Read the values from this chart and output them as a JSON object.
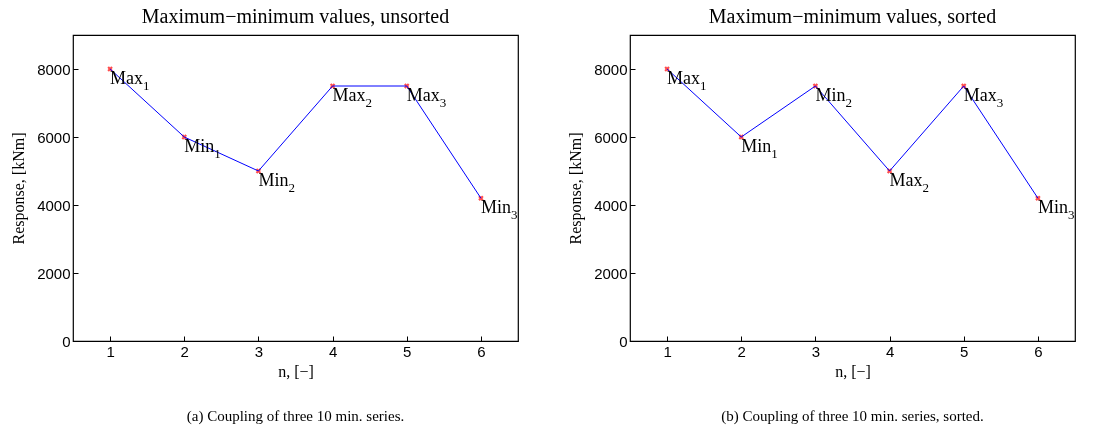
{
  "chart_data": [
    {
      "type": "line",
      "title": "Maximum−minimum values, unsorted",
      "xlabel": "n, [−]",
      "ylabel": "Response, [kNm]",
      "x": [
        1,
        2,
        3,
        4,
        5,
        6
      ],
      "series": [
        {
          "type": "scatter",
          "marker": "cross",
          "color": "#ff0000",
          "values": [
            8000,
            6000,
            5000,
            7500,
            7500,
            4200
          ]
        },
        {
          "marker": "none",
          "color": "#0000ff",
          "values": [
            8000,
            6000,
            5000,
            7500,
            7500,
            4200
          ]
        }
      ],
      "grid": false,
      "xlim": [
        0.5,
        6.5
      ],
      "xticks": [
        1,
        2,
        3,
        4,
        5,
        6
      ],
      "ylim": [
        0,
        9000
      ],
      "yticks": [
        0,
        2000,
        4000,
        6000,
        8000
      ],
      "annotations": [
        {
          "text": "Max$_{1}$",
          "x": 1,
          "y": 8000
        },
        {
          "text": "Min$_{1}$",
          "x": 2,
          "y": 6000
        },
        {
          "text": "Min$_{2}$",
          "x": 3,
          "y": 5000
        },
        {
          "text": "Max$_{2}$",
          "x": 4,
          "y": 7500
        },
        {
          "text": "Max$_{3}$",
          "x": 5,
          "y": 7500
        },
        {
          "text": "Min$_{3}$",
          "x": 6,
          "y": 4200
        },
        "(a)  Coupling of three 10 min. series."
      ]
    },
    {
      "type": "line",
      "title": "Maximum−minimum values, sorted",
      "xlabel": "n, [−]",
      "ylabel": "Response, [kNm]",
      "x": [
        1,
        2,
        3,
        4,
        5,
        6
      ],
      "series": [
        {
          "type": "scatter",
          "marker": "cross",
          "color": "#ff0000",
          "values": [
            8000,
            6000,
            7500,
            5000,
            7500,
            4200
          ]
        },
        {
          "marker": "none",
          "color": "#0000ff",
          "values": [
            8000,
            6000,
            7500,
            5000,
            7500,
            4200
          ]
        }
      ],
      "grid": false,
      "xlim": [
        0.5,
        6.5
      ],
      "xticks": [
        1,
        2,
        3,
        4,
        5,
        6
      ],
      "ylim": [
        0,
        9000
      ],
      "yticks": [
        0,
        2000,
        4000,
        6000,
        8000
      ],
      "annotations": [
        {
          "text": "Max$_{1}$",
          "x": 1,
          "y": 8000
        },
        {
          "text": "Min$_{1}$",
          "x": 2,
          "y": 6000
        },
        {
          "text": "Min$_{2}$",
          "x": 3,
          "y": 7500
        },
        {
          "text": "Max$_{2}$",
          "x": 4,
          "y": 5000
        },
        {
          "text": "Max$_{3}$",
          "x": 5,
          "y": 7500
        },
        {
          "text": "Min$_{3}$",
          "x": 6,
          "y": 4200
        },
        "(b)  Coupling of three 10 min. series, sorted."
      ]
    }
  ]
}
